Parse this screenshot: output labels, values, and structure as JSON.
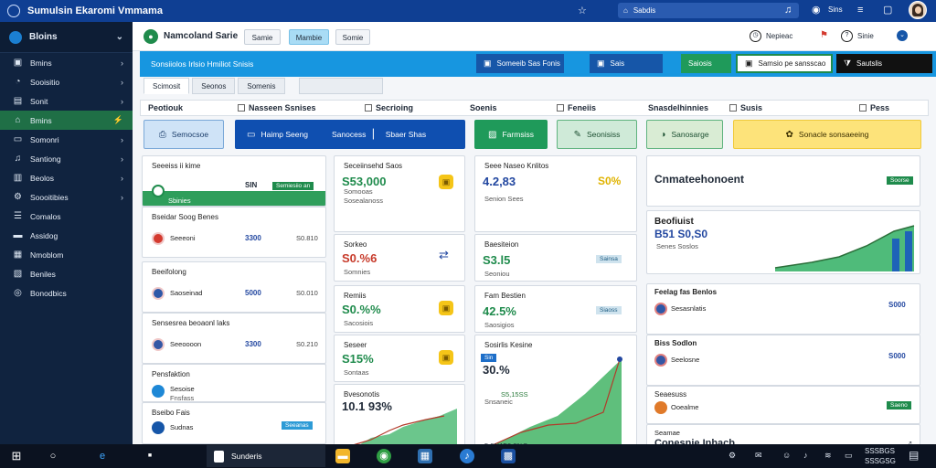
{
  "window": {
    "title": "Sumulsin Ekaromi Vmmama",
    "search_text": "Sabdis",
    "top_label": "Sins"
  },
  "sidebar": {
    "header": "Bloins",
    "items": [
      {
        "label": "Bmins",
        "icon": "wallet-icon"
      },
      {
        "label": "Sooisitio",
        "icon": "chart-icon"
      },
      {
        "label": "Sonit",
        "icon": "document-icon"
      },
      {
        "label": "Bmins",
        "icon": "home-icon",
        "active": true
      },
      {
        "label": "Somonri",
        "icon": "card-icon"
      },
      {
        "label": "Santiong",
        "icon": "bell-icon"
      },
      {
        "label": "Beolos",
        "icon": "book-icon"
      },
      {
        "label": "Soooitibies",
        "icon": "gear-icon"
      },
      {
        "label": "Comalos",
        "icon": "list-icon"
      },
      {
        "label": "Assidog",
        "icon": "folder-icon"
      },
      {
        "label": "Nmoblom",
        "icon": "grid-icon"
      },
      {
        "label": "Beniles",
        "icon": "clipboard-icon"
      },
      {
        "label": "Bonodbics",
        "icon": "globe-icon"
      }
    ]
  },
  "toolbar": {
    "app_title": "Namcoland Sarie",
    "buttons": [
      "Samie",
      "Mambie",
      "Somie"
    ],
    "right_1": "Nepieac",
    "right_2": "Sinie"
  },
  "banner": {
    "text": "Sonsiiolos Irlsio Hmiliot Snisis",
    "buttons": [
      {
        "label": "Someeib Sas Fonis",
        "bg": "#1656a8"
      },
      {
        "label": "Sais",
        "bg": "#1656a8"
      },
      {
        "label": "Saiosis",
        "bg": "#1f9a5a"
      },
      {
        "label": "Samsio pe sansscao",
        "bg": "#ffffff"
      },
      {
        "label": "Sautslis",
        "bg": "#111111"
      }
    ]
  },
  "tabs": [
    "Scimosit",
    "Seonos",
    "Somenis"
  ],
  "columns": [
    "Peotiouk",
    "Nasseen Ssnises",
    "Secrioing",
    "Soenis",
    "Feneiis",
    "Snasdelhinnies",
    "Susis",
    "Pess"
  ],
  "actions": [
    {
      "label": "Semocsoe"
    },
    {
      "label": "Haimp Seeng"
    },
    {
      "label": "Sanocess"
    },
    {
      "label": "Sbaer Shas"
    },
    {
      "label": "Farmsiss"
    },
    {
      "label": "Seonisiss"
    },
    {
      "label": "Sanosarge"
    },
    {
      "label": "Sonacle sonsaeeing"
    }
  ],
  "left_cards": [
    {
      "title": "Seeeiss ii kime",
      "name": "Sbinies",
      "val": "SIN",
      "pill": "Semiesiio an"
    },
    {
      "title": "Bseidar Soog Benes",
      "name": "Seeeoni",
      "val": "3300",
      "val2": "S0.810"
    },
    {
      "title": "Beeifolong",
      "name": "Saoseinad",
      "val": "5000",
      "val2": "S0.010"
    },
    {
      "title": "Sensesrea beoaonl laks",
      "name": "Seeoooon",
      "val": "3300",
      "val2": "S0.210"
    },
    {
      "title": "Pensfaktion",
      "name": "Sesoise",
      "sub": "Fnsfass"
    },
    {
      "title": "Bseibo Fais",
      "name": "Sudnas",
      "pill": "Seeanas"
    }
  ],
  "mid_cards": [
    {
      "title": "Seceiinsehd Saos",
      "big": "S53,000",
      "sub1": "Somooas",
      "sub2": "Sosealanoss"
    },
    {
      "title": "Sorkeo",
      "big": "S0.%6",
      "sub1": "Somnies"
    },
    {
      "title": "Remiis",
      "big": "S0.%%",
      "sub1": "Sacosiois"
    },
    {
      "title": "Seseer",
      "big": "S15%",
      "sub1": "Sontaas"
    },
    {
      "title": "Bvesonotis",
      "big": "10.1 93%",
      "axis": "0 05 S00",
      "axis2": "SBNS"
    }
  ],
  "right_cards": [
    {
      "title": "Seee Naseo Knlitos",
      "big": "4.2,83",
      "sub": "Senion Sees",
      "pct": "S0%"
    },
    {
      "title": "Baesiteion",
      "big": "S3.l5",
      "sub": "Seoniou",
      "pill": "Sainsa"
    },
    {
      "title": "Fam Bestien",
      "big": "42.5%",
      "sub": "Saosigios",
      "pill": "Siaoss"
    },
    {
      "title": "Sosirlis Kesine",
      "big": "30.%",
      "tag": "Sin",
      "sub": "Snsaneic",
      "pct2": "S5,15SS",
      "axis": "5 0%Ne",
      "axis2": "S0,0%S"
    }
  ],
  "far_cards": [
    {
      "title": "Cnmateehonoent",
      "pill": "Soorse"
    },
    {
      "title": "Beofiuist",
      "big": "B51  S0,S0",
      "sub": "Senes Soslos"
    },
    {
      "title": "Feelag fas Benlos",
      "name": "Sesasnlatis",
      "val": "S000"
    },
    {
      "title": "Biss Sodlon",
      "name": "Seelosne",
      "val": "S000"
    },
    {
      "title": "Seaesuss",
      "name": "Ooealme",
      "pill": "Saeno"
    },
    {
      "title": "Seamae",
      "big": "Conesnie Inhacb",
      "sub": "Soosed"
    }
  ],
  "taskbar": {
    "app_label": "Sunderis",
    "time": "SSSBGS",
    "date": "SSSGSG"
  },
  "colors": {
    "titlebar": "#0f3f93",
    "sidebar": "#10233f",
    "accent_green": "#1f8b4c",
    "accent_blue": "#1796e0"
  }
}
